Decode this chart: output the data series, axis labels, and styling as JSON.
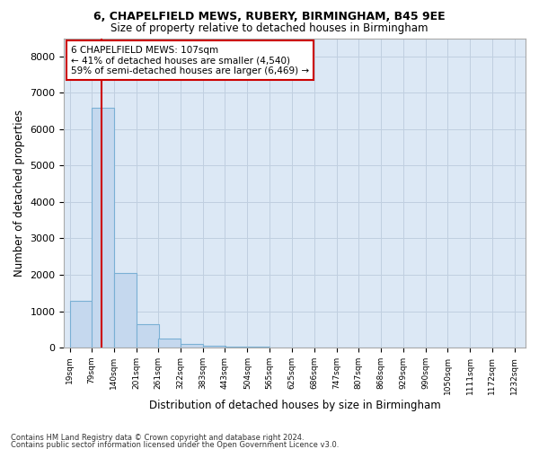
{
  "title1": "6, CHAPELFIELD MEWS, RUBERY, BIRMINGHAM, B45 9EE",
  "title2": "Size of property relative to detached houses in Birmingham",
  "xlabel": "Distribution of detached houses by size in Birmingham",
  "ylabel": "Number of detached properties",
  "footnote1": "Contains HM Land Registry data © Crown copyright and database right 2024.",
  "footnote2": "Contains public sector information licensed under the Open Government Licence v3.0.",
  "bar_color": "#c5d8ee",
  "bar_edge_color": "#7ab0d4",
  "annotation_line1": "6 CHAPELFIELD MEWS: 107sqm",
  "annotation_line2": "← 41% of detached houses are smaller (4,540)",
  "annotation_line3": "59% of semi-detached houses are larger (6,469) →",
  "property_size": 107,
  "red_line_color": "#cc0000",
  "annotation_box_color": "#cc0000",
  "ylim_max": 8500,
  "yticks": [
    0,
    1000,
    2000,
    3000,
    4000,
    5000,
    6000,
    7000,
    8000
  ],
  "bins_left": [
    19,
    79,
    140,
    201,
    261,
    322,
    383,
    443,
    504,
    565,
    625,
    686,
    747,
    807,
    868,
    929,
    990,
    1050,
    1111,
    1172
  ],
  "bin_width": 61,
  "bin_labels": [
    "19sqm",
    "79sqm",
    "140sqm",
    "201sqm",
    "261sqm",
    "322sqm",
    "383sqm",
    "443sqm",
    "504sqm",
    "565sqm",
    "625sqm",
    "686sqm",
    "747sqm",
    "807sqm",
    "868sqm",
    "929sqm",
    "990sqm",
    "1050sqm",
    "1111sqm",
    "1172sqm",
    "1232sqm"
  ],
  "values": [
    1280,
    6580,
    2060,
    640,
    240,
    110,
    60,
    30,
    15,
    8,
    5,
    3,
    2,
    2,
    1,
    1,
    1,
    0,
    0,
    0
  ],
  "background_color": "#ffffff",
  "plot_bg_color": "#dce8f5",
  "grid_color": "#c0cfe0"
}
